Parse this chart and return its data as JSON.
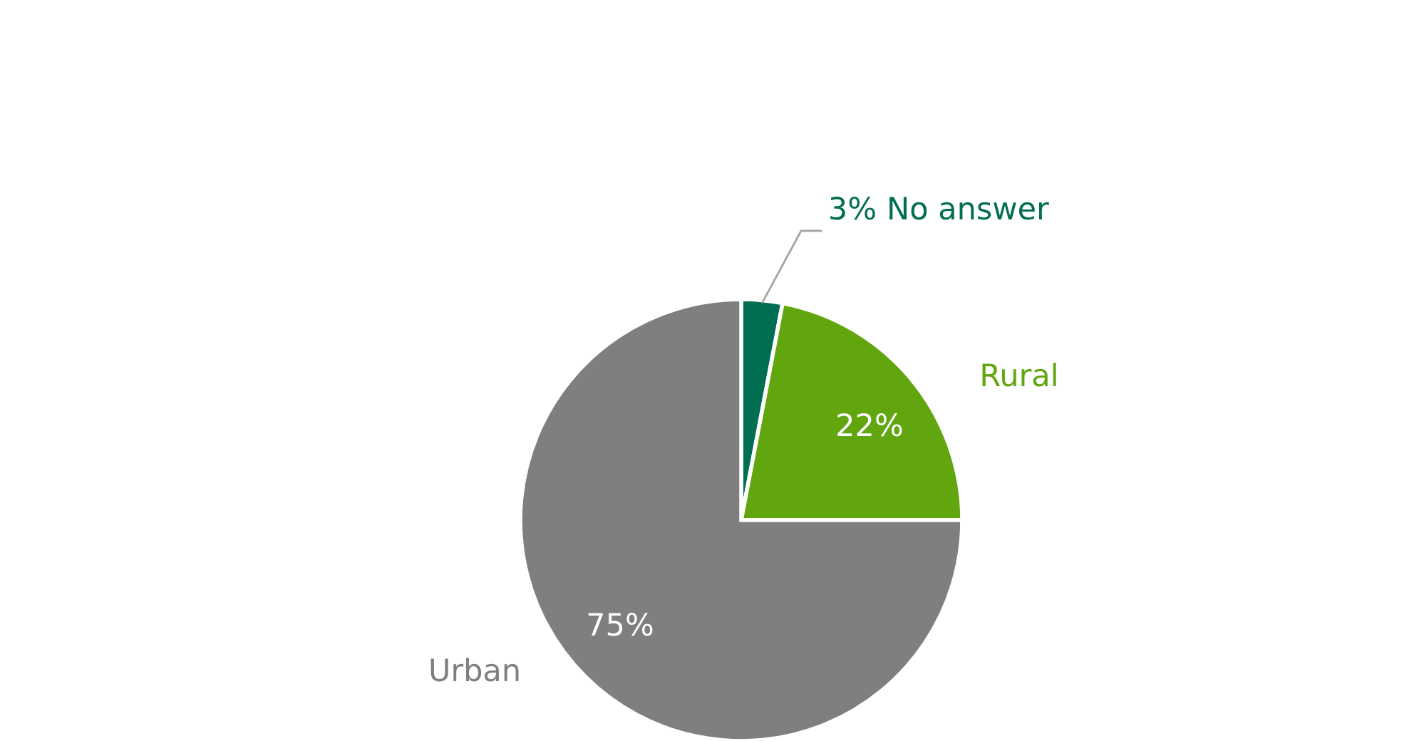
{
  "chart_data": {
    "type": "pie",
    "categories": [
      "No answer",
      "Rural",
      "Urban"
    ],
    "values": [
      3,
      22,
      75
    ],
    "colors": [
      "#006e51",
      "#62a60f",
      "#7f7f7f"
    ],
    "value_labels": [
      "3%",
      "22%",
      "75%"
    ]
  }
}
